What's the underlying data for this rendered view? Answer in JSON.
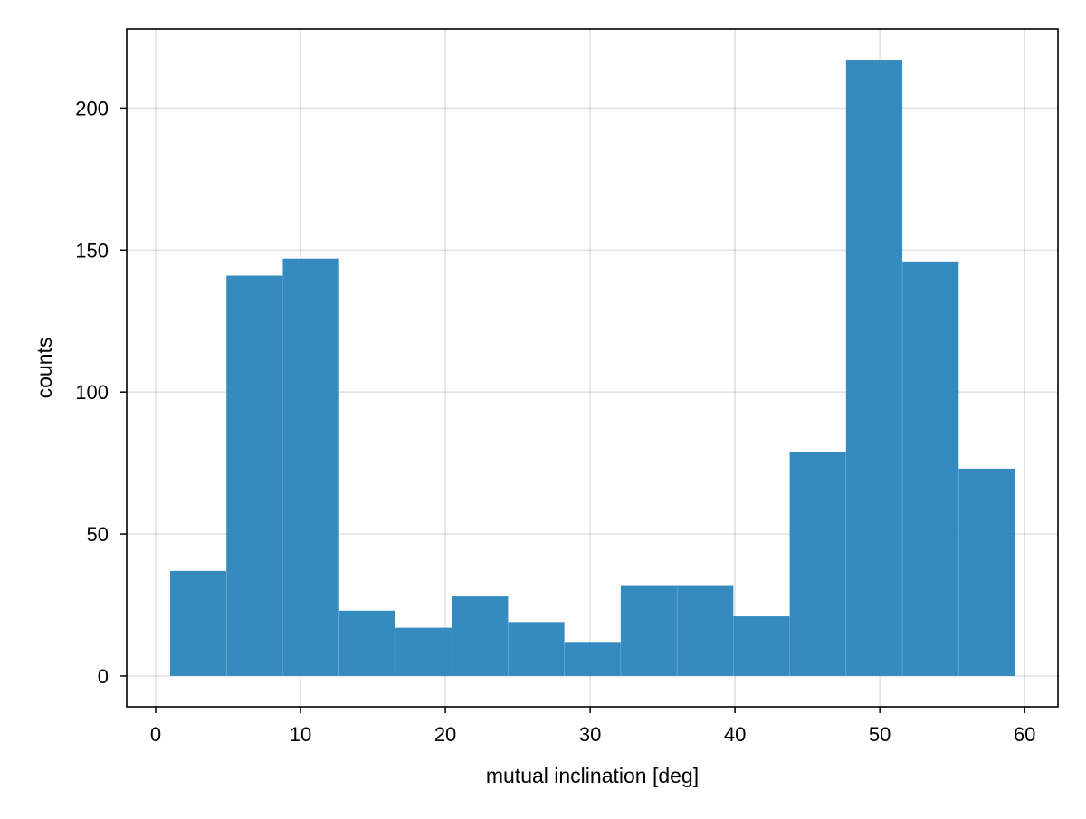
{
  "chart_data": {
    "type": "bar",
    "xlabel": "mutual inclination [deg]",
    "ylabel": "counts",
    "bin_edges": [
      1.0,
      4.8888,
      8.7777,
      12.6665,
      16.5554,
      20.4442,
      24.333,
      28.2219,
      32.1107,
      35.9996,
      39.8884,
      43.7772,
      47.6661,
      51.5549,
      55.4438,
      59.3326
    ],
    "values": [
      37,
      141,
      147,
      23,
      17,
      28,
      19,
      12,
      32,
      32,
      21,
      79,
      217,
      146,
      73
    ],
    "xlim": [
      -2,
      62.3
    ],
    "ylim": [
      -10.85,
      227.85
    ],
    "x_ticks": [
      "0",
      "10",
      "20",
      "30",
      "40",
      "50",
      "60"
    ],
    "y_ticks": [
      "0",
      "50",
      "100",
      "150",
      "200"
    ],
    "grid": true,
    "bar_color": "#2a84bd"
  }
}
